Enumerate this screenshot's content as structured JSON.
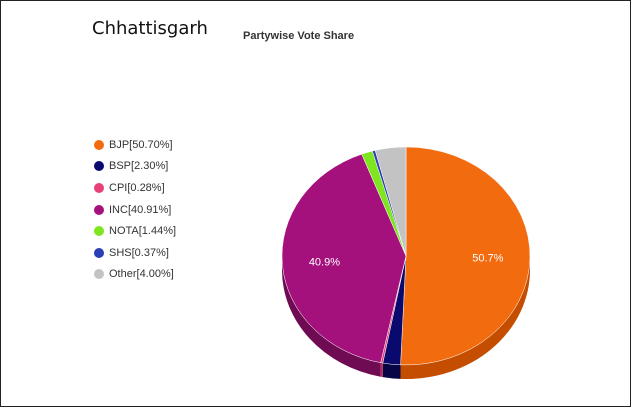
{
  "heading": "Chhattisgarh",
  "chart_data": {
    "type": "pie",
    "title": "Partywise Vote Share",
    "legend_position": "left",
    "style": "3d",
    "slices": [
      {
        "label": "BJP",
        "value": 50.7,
        "legend": "BJP[50.70%]",
        "data_label": "50.7%",
        "color": "#f26b0f",
        "shade": "#c44d00"
      },
      {
        "label": "BSP",
        "value": 2.3,
        "legend": "BSP[2.30%]",
        "data_label": "",
        "color": "#0a0a6e",
        "shade": "#060646"
      },
      {
        "label": "CPI",
        "value": 0.28,
        "legend": "CPI[0.28%]",
        "data_label": "",
        "color": "#e8407a",
        "shade": "#b02a58"
      },
      {
        "label": "INC",
        "value": 40.91,
        "legend": "INC[40.91%]",
        "data_label": "40.9%",
        "color": "#a5117c",
        "shade": "#6e0b53"
      },
      {
        "label": "NOTA",
        "value": 1.44,
        "legend": "NOTA[1.44%]",
        "data_label": "",
        "color": "#7ee51f",
        "shade": "#56a812"
      },
      {
        "label": "SHS",
        "value": 0.37,
        "legend": "SHS[0.37%]",
        "data_label": "",
        "color": "#2a3fb5",
        "shade": "#1c2a80"
      },
      {
        "label": "Other",
        "value": 4.0,
        "legend": "Other[4.00%]",
        "data_label": "",
        "color": "#c3c3c3",
        "shade": "#959595"
      }
    ]
  }
}
